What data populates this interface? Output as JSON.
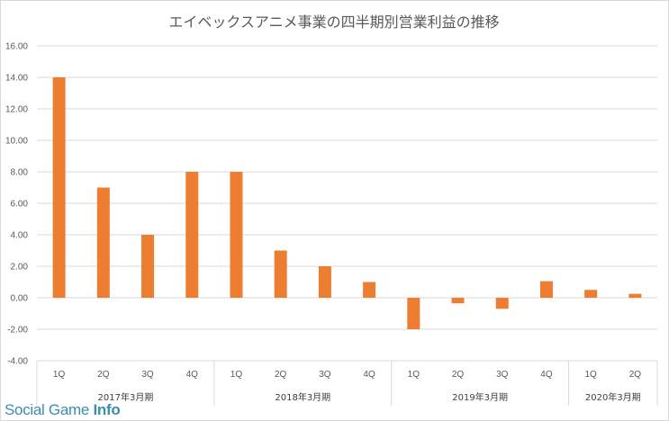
{
  "chart_data": {
    "type": "bar",
    "title": "エイベックスアニメ事業の四半期別営業利益の推移",
    "xlabel": "",
    "ylabel": "",
    "ylim": [
      -4,
      16
    ],
    "yticks": [
      "16.00",
      "14.00",
      "12.00",
      "10.00",
      "8.00",
      "6.00",
      "4.00",
      "2.00",
      "0.00",
      "-2.00",
      "-4.00"
    ],
    "yticks_values": [
      16,
      14,
      12,
      10,
      8,
      6,
      4,
      2,
      0,
      -2,
      -4
    ],
    "categories": [
      "1Q",
      "2Q",
      "3Q",
      "4Q",
      "1Q",
      "2Q",
      "3Q",
      "4Q",
      "1Q",
      "2Q",
      "3Q",
      "4Q",
      "1Q",
      "2Q"
    ],
    "groups": [
      {
        "label": "2017年3月期",
        "count": 4
      },
      {
        "label": "2018年3月期",
        "count": 4
      },
      {
        "label": "2019年3月期",
        "count": 4
      },
      {
        "label": "2020年3月期",
        "count": 2
      }
    ],
    "series": [
      {
        "values": [
          14.0,
          7.0,
          4.0,
          8.0,
          8.0,
          3.0,
          2.0,
          1.0,
          -2.0,
          -0.35,
          -0.7,
          1.05,
          0.5,
          0.25
        ],
        "color": "#ed7d31"
      }
    ],
    "grid": true,
    "legend": "none"
  },
  "watermark": {
    "part1": "Social Game ",
    "part2": "Info"
  }
}
